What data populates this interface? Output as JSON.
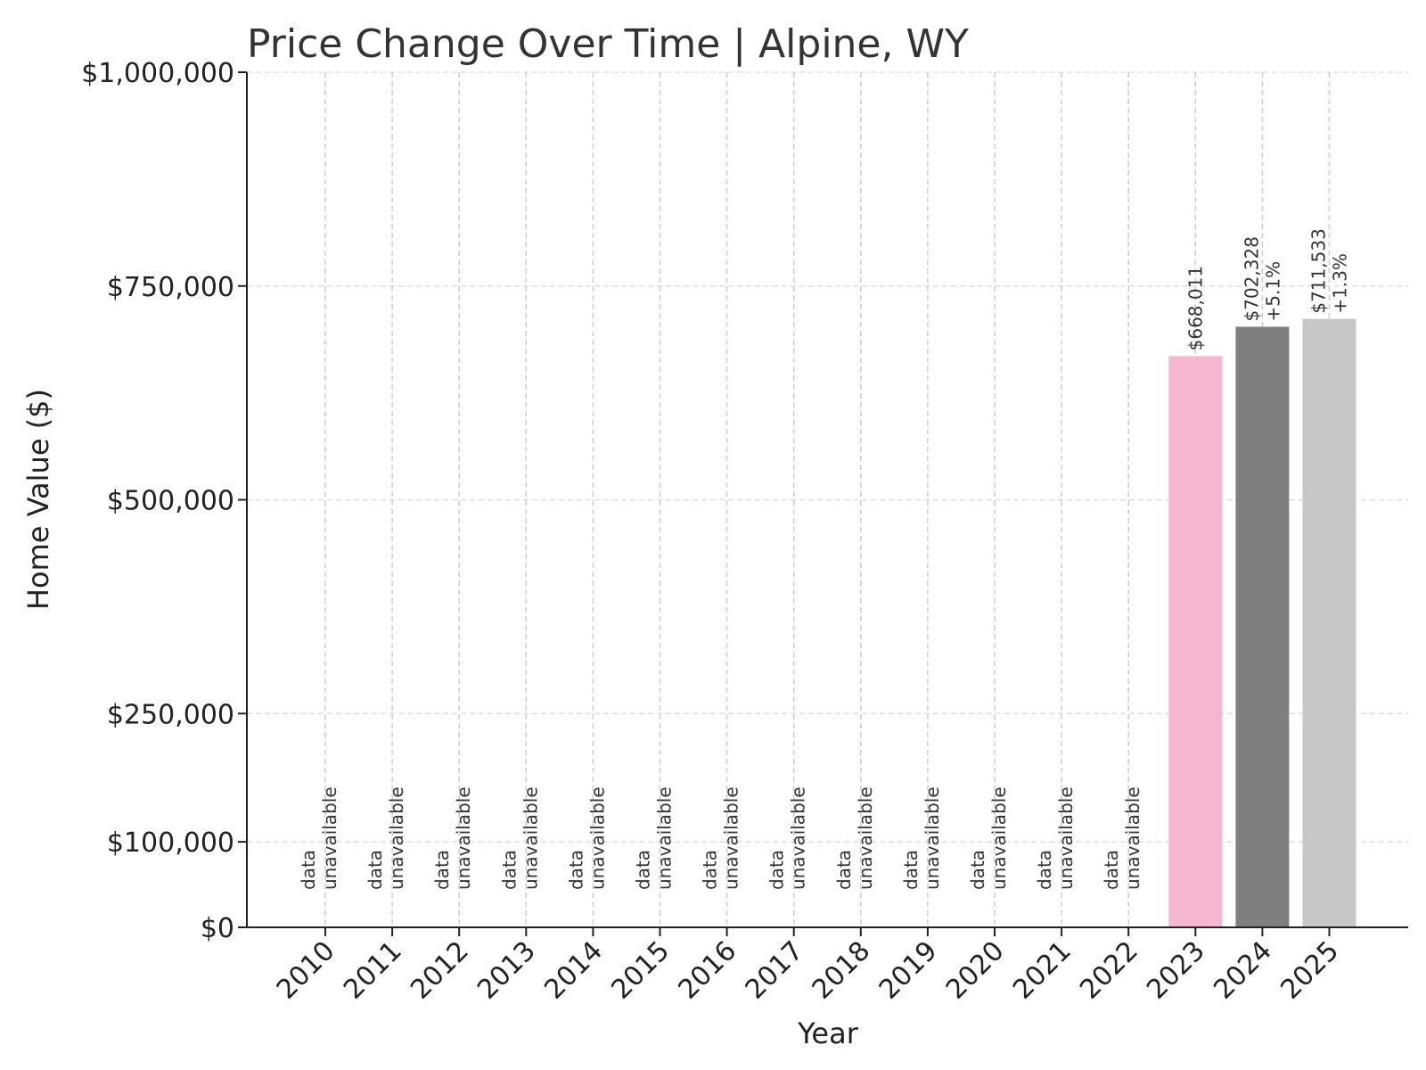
{
  "chart_data": {
    "type": "bar",
    "title": "Price Change Over Time | Alpine, WY",
    "xlabel": "Year",
    "ylabel": "Home Value ($)",
    "ylim": [
      0,
      1000000
    ],
    "yticks": [
      {
        "value": 0,
        "label": "$0"
      },
      {
        "value": 100000,
        "label": "$100,000"
      },
      {
        "value": 250000,
        "label": "$250,000"
      },
      {
        "value": 500000,
        "label": "$500,000"
      },
      {
        "value": 750000,
        "label": "$750,000"
      },
      {
        "value": 1000000,
        "label": "$1,000,000"
      }
    ],
    "grid": true,
    "unavailable_label": [
      "data",
      "unavailable"
    ],
    "categories": [
      "2010",
      "2011",
      "2012",
      "2013",
      "2014",
      "2015",
      "2016",
      "2017",
      "2018",
      "2019",
      "2020",
      "2021",
      "2022",
      "2023",
      "2024",
      "2025"
    ],
    "values": [
      null,
      null,
      null,
      null,
      null,
      null,
      null,
      null,
      null,
      null,
      null,
      null,
      null,
      668011,
      702328,
      711533
    ],
    "value_labels": [
      "",
      "",
      "",
      "",
      "",
      "",
      "",
      "",
      "",
      "",
      "",
      "",
      "",
      "$668,011",
      "$702,328",
      "$711,533"
    ],
    "change_labels": [
      "",
      "",
      "",
      "",
      "",
      "",
      "",
      "",
      "",
      "",
      "",
      "",
      "",
      "",
      "+5.1%",
      "+1.3%"
    ],
    "colors": [
      "",
      "",
      "",
      "",
      "",
      "",
      "",
      "",
      "",
      "",
      "",
      "",
      "",
      "#f5b6d0",
      "#7f7f7f",
      "#c7c7c7"
    ]
  }
}
